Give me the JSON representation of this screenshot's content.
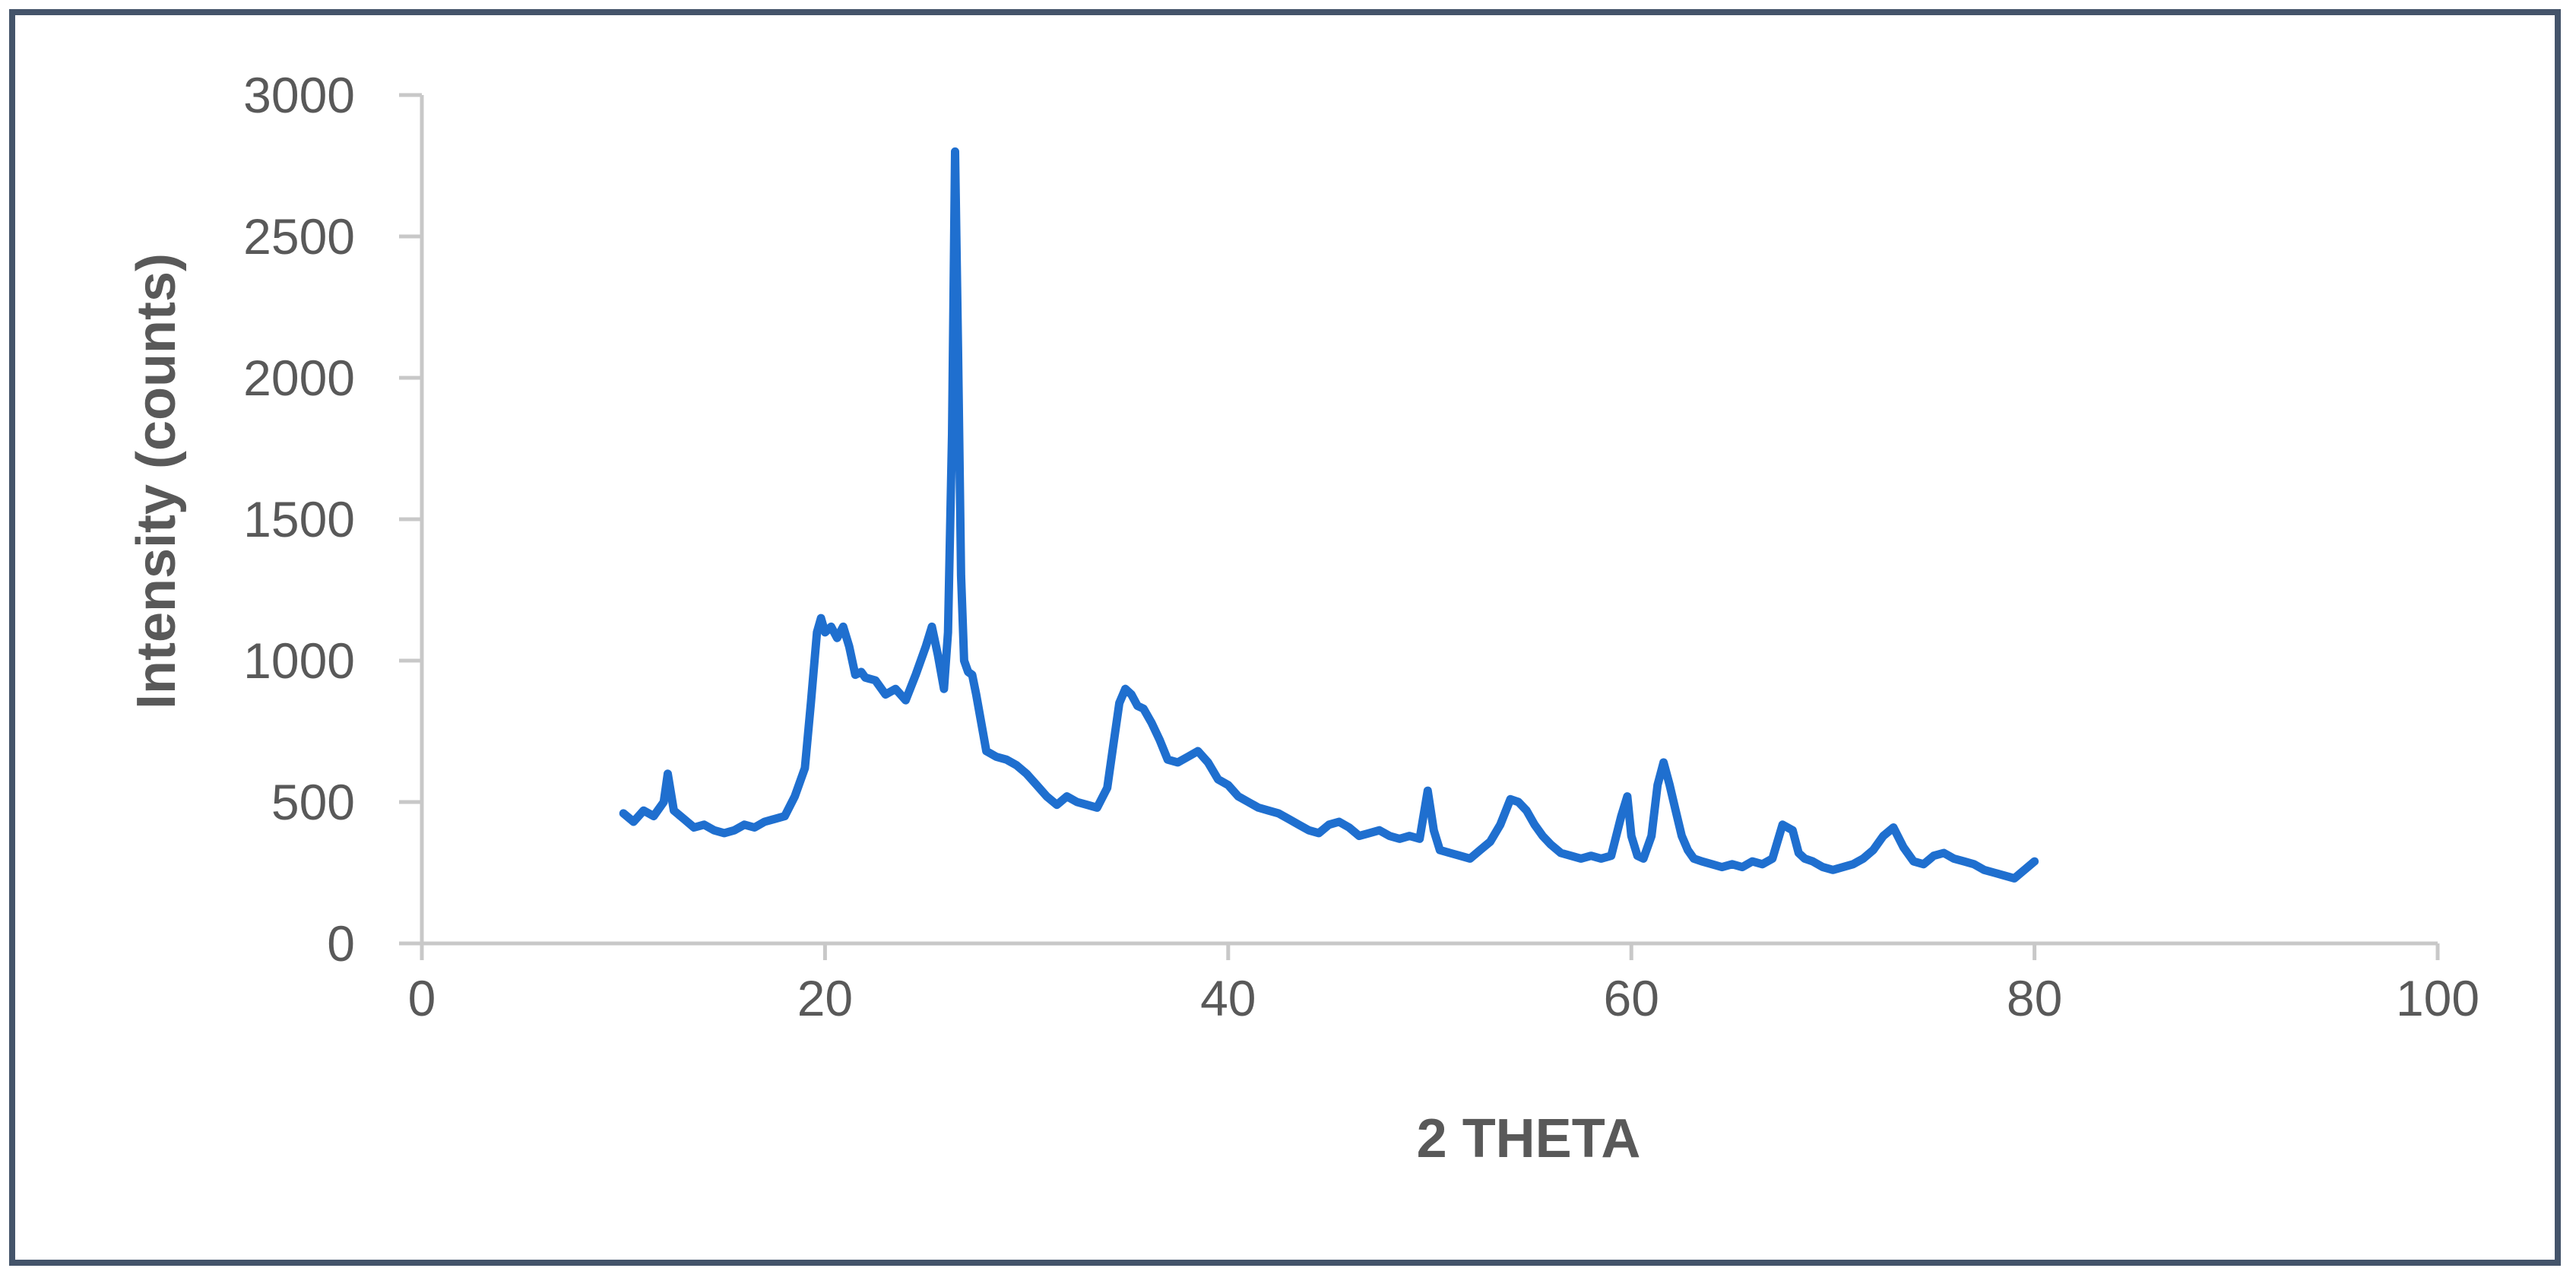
{
  "chart_data": {
    "type": "line",
    "title": "",
    "xlabel": "2 THETA",
    "ylabel": "Intensity (counts)",
    "xlim": [
      0,
      100
    ],
    "ylim": [
      0,
      3000
    ],
    "x_ticks": [
      0,
      20,
      40,
      60,
      80,
      100
    ],
    "y_ticks": [
      0,
      500,
      1000,
      1500,
      2000,
      2500,
      3000
    ],
    "grid": false,
    "legend": "none",
    "series": [
      {
        "color": "#1f6fcf",
        "x": [
          10,
          10.5,
          11,
          11.5,
          12,
          12.2,
          12.5,
          13,
          13.5,
          14,
          14.5,
          15,
          15.5,
          16,
          16.5,
          17,
          17.5,
          18,
          18.5,
          19,
          19.3,
          19.6,
          19.8,
          20,
          20.3,
          20.6,
          20.9,
          21.2,
          21.5,
          21.8,
          22,
          22.5,
          23,
          23.5,
          24,
          24.5,
          25,
          25.3,
          25.6,
          25.9,
          26.1,
          26.3,
          26.45,
          26.6,
          26.75,
          26.9,
          27.1,
          27.3,
          27.5,
          28,
          28.5,
          29,
          29.5,
          30,
          30.5,
          31,
          31.5,
          32,
          32.5,
          33,
          33.5,
          34,
          34.3,
          34.6,
          34.9,
          35.2,
          35.5,
          35.8,
          36.2,
          36.6,
          37,
          37.5,
          38,
          38.5,
          39,
          39.5,
          40,
          40.5,
          41,
          41.5,
          42,
          42.5,
          43,
          43.5,
          44,
          44.5,
          45,
          45.5,
          46,
          46.5,
          47,
          47.5,
          48,
          48.5,
          49,
          49.5,
          49.9,
          50.2,
          50.5,
          51,
          51.5,
          52,
          52.5,
          53,
          53.5,
          54,
          54.4,
          54.8,
          55.2,
          55.6,
          56,
          56.5,
          57,
          57.5,
          58,
          58.5,
          59,
          59.5,
          59.8,
          60,
          60.3,
          60.6,
          61,
          61.3,
          61.6,
          61.9,
          62.2,
          62.5,
          62.8,
          63.1,
          63.5,
          64,
          64.5,
          65,
          65.5,
          66,
          66.5,
          67,
          67.5,
          68,
          68.3,
          68.6,
          69,
          69.5,
          70,
          70.5,
          71,
          71.5,
          72,
          72.5,
          73,
          73.5,
          74,
          74.5,
          75,
          75.5,
          76,
          76.5,
          77,
          77.5,
          78,
          78.5,
          79,
          79.5,
          80
        ],
        "y": [
          460,
          430,
          470,
          450,
          500,
          600,
          470,
          440,
          410,
          420,
          400,
          390,
          400,
          420,
          410,
          430,
          440,
          450,
          520,
          620,
          850,
          1100,
          1150,
          1100,
          1120,
          1080,
          1120,
          1050,
          950,
          960,
          940,
          930,
          880,
          900,
          860,
          950,
          1050,
          1120,
          1020,
          900,
          1100,
          1800,
          2800,
          2100,
          1300,
          1000,
          960,
          950,
          880,
          680,
          660,
          650,
          630,
          600,
          560,
          520,
          490,
          520,
          500,
          490,
          480,
          550,
          700,
          850,
          900,
          880,
          840,
          830,
          780,
          720,
          650,
          640,
          660,
          680,
          640,
          580,
          560,
          520,
          500,
          480,
          470,
          460,
          440,
          420,
          400,
          390,
          420,
          430,
          410,
          380,
          390,
          400,
          380,
          370,
          380,
          370,
          540,
          400,
          330,
          320,
          310,
          300,
          330,
          360,
          420,
          510,
          500,
          470,
          420,
          380,
          350,
          320,
          310,
          300,
          310,
          300,
          310,
          450,
          520,
          380,
          310,
          300,
          380,
          560,
          640,
          560,
          470,
          380,
          330,
          300,
          290,
          280,
          270,
          280,
          270,
          290,
          280,
          300,
          420,
          400,
          320,
          300,
          290,
          270,
          260,
          270,
          280,
          300,
          330,
          380,
          410,
          340,
          290,
          280,
          310,
          320,
          300,
          290,
          280,
          260,
          250,
          240,
          230,
          260,
          290
        ]
      }
    ]
  }
}
